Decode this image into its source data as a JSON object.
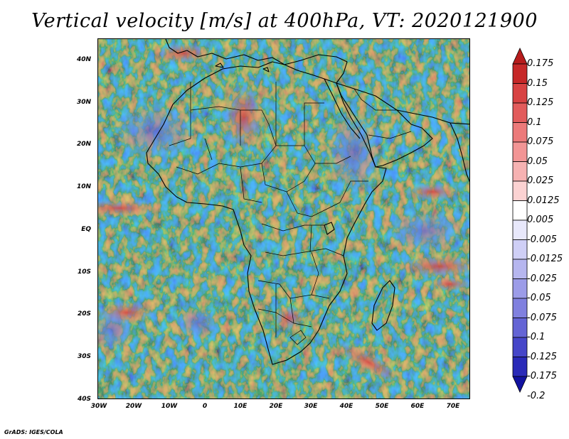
{
  "title": "Vertical velocity [m/s] at 400hPa, VT: 2020121900",
  "latitude_labels": [
    "40N",
    "30N",
    "20N",
    "10N",
    "EQ",
    "10S",
    "20S",
    "30S",
    "40S"
  ],
  "longitude_labels": [
    "30W",
    "20W",
    "10W",
    "0",
    "10E",
    "20E",
    "30E",
    "40E",
    "50E",
    "60E",
    "70E"
  ],
  "colorbar": {
    "levels": [
      "0.175",
      "0.15",
      "0.125",
      "0.1",
      "0.075",
      "0.05",
      "0.025",
      "0.0125",
      "0.005",
      "-0.005",
      "-0.0125",
      "-0.025",
      "-0.05",
      "-0.075",
      "-0.1",
      "-0.125",
      "-0.175",
      "-0.2"
    ],
    "colors": [
      "#b71c1c",
      "#c62828",
      "#d84343",
      "#e25c5c",
      "#ec7a7a",
      "#f29595",
      "#f6b2b2",
      "#fbd2d2",
      "#ffffff",
      "#e8e8fb",
      "#cfcff6",
      "#b6b6ef",
      "#9c9ce8",
      "#8080df",
      "#6464d5",
      "#4646c9",
      "#2a2ab8",
      "#1212a0"
    ]
  },
  "credit": "GrADS: IGES/COLA"
}
